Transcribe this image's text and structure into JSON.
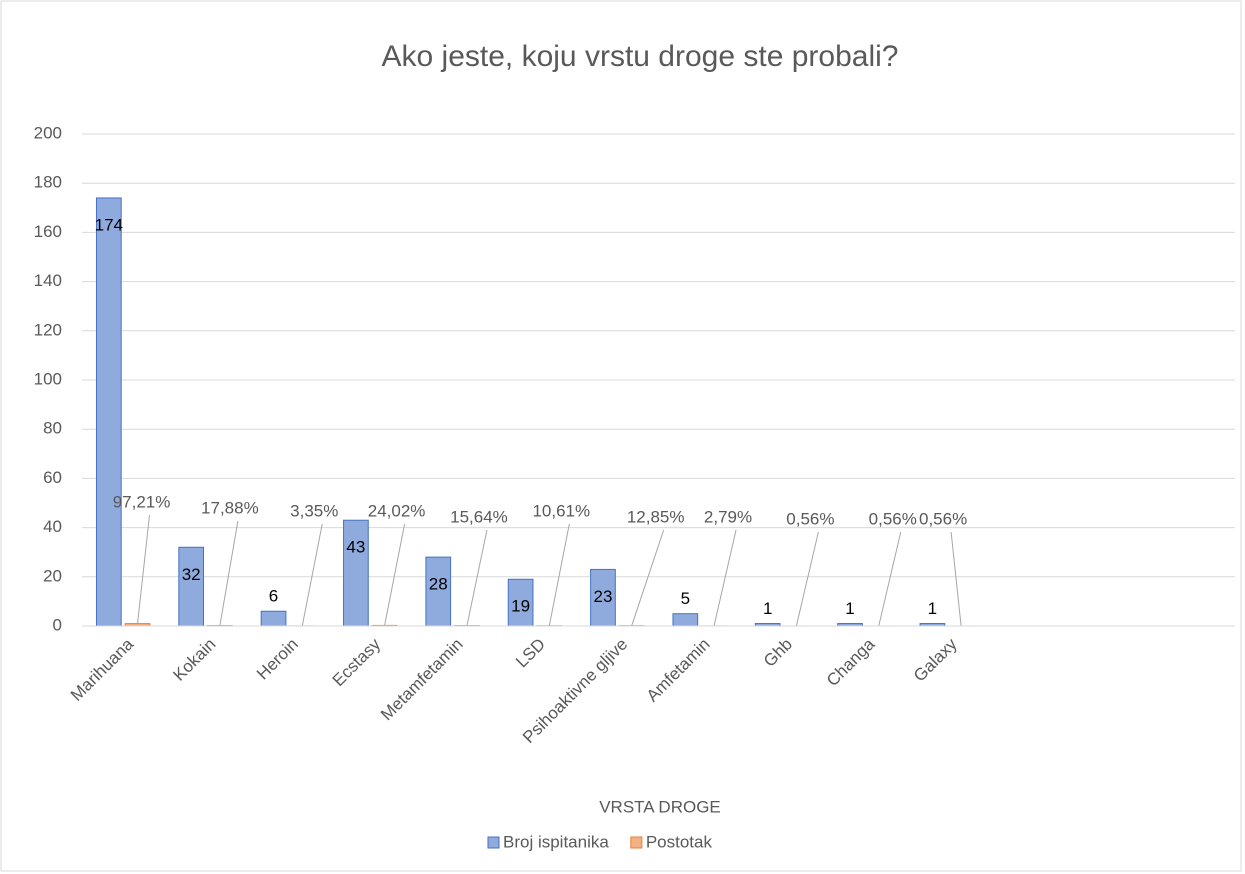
{
  "chart_data": {
    "type": "bar",
    "title": "Ako jeste, koju vrstu droge ste probali?",
    "x_label": "VRSTA DROGE",
    "categories": [
      "Marihuana",
      "Kokain",
      "Heroin",
      "Ecstasy",
      "Metamfetamin",
      "LSD",
      "Psihoaktivne gljive",
      "Amfetamin",
      "Ghb",
      "Changa",
      "Galaxy",
      null,
      null,
      null
    ],
    "series": [
      {
        "name": "Broj ispitanika",
        "color": "#8faadc",
        "values": [
          174,
          32,
          6,
          43,
          28,
          19,
          23,
          5,
          1,
          1,
          1,
          null,
          null,
          null
        ]
      },
      {
        "name": "Postotak",
        "color": "#f4b183",
        "values": [
          0.9721,
          0.1788,
          0.0335,
          0.2402,
          0.1564,
          0.1061,
          0.1285,
          0.0279,
          0.0056,
          0.0056,
          0.0056,
          null,
          null,
          null
        ],
        "value_labels": [
          "97,21%",
          "17,88%",
          "3,35%",
          "24,02%",
          "15,64%",
          "10,61%",
          "12,85%",
          "2,79%",
          "0,56%",
          "0,56%",
          "0,56%",
          null,
          null,
          null
        ]
      }
    ],
    "ylim": [
      0,
      200
    ],
    "yticks": [
      0,
      20,
      40,
      60,
      80,
      100,
      120,
      140,
      160,
      180,
      200
    ],
    "grid": true,
    "legend": "bottom"
  }
}
